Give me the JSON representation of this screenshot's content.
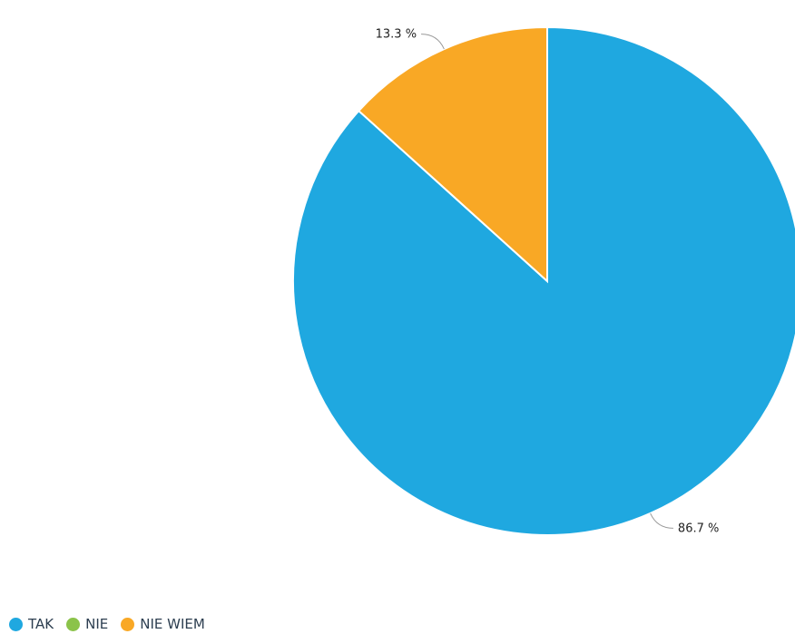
{
  "chart_data": {
    "type": "pie",
    "categories": [
      "TAK",
      "NIE",
      "NIE WIEM"
    ],
    "values": [
      86.7,
      0,
      13.3
    ],
    "data_labels": {
      "TAK": "86.7 %",
      "NIE WIEM": "13.3 %"
    },
    "colors": {
      "TAK": "#1fa8e0",
      "NIE": "#8bc34a",
      "NIE WIEM": "#f9a825"
    },
    "legend_position": "bottom-left"
  },
  "legend": {
    "items": [
      {
        "label": "TAK",
        "color": "#1fa8e0"
      },
      {
        "label": "NIE",
        "color": "#8bc34a"
      },
      {
        "label": "NIE WIEM",
        "color": "#f9a825"
      }
    ]
  }
}
